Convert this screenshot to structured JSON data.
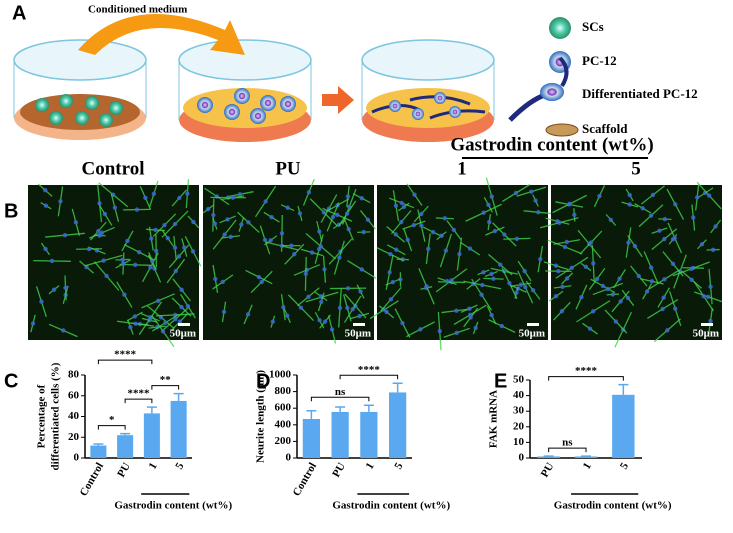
{
  "panels": {
    "a": "A",
    "b": "B",
    "c": "C",
    "d": "D",
    "e": "E"
  },
  "schematic": {
    "arrow_label": "Conditioned medium",
    "legend": [
      "SCs",
      "PC-12",
      "Differentiated PC-12",
      "Scaffold"
    ]
  },
  "micrographs": {
    "headers": [
      "Control",
      "PU",
      "1",
      "5"
    ],
    "group_label": "Gastrodin content (wt%)",
    "scale_labels": [
      "50μm",
      "50μm",
      "50μm",
      "50μm"
    ]
  },
  "chart_data": [
    {
      "type": "bar",
      "y_label": [
        "Percentage of",
        "differentiated cells (%)"
      ],
      "categories": [
        "Control",
        "PU",
        "1",
        "5"
      ],
      "values": [
        12,
        22,
        43,
        55
      ],
      "errors": [
        1.5,
        1.5,
        6,
        7
      ],
      "color": "#5aa9f0",
      "ylim": [
        0,
        80
      ],
      "yticks": [
        0,
        20,
        40,
        60,
        80
      ],
      "group_label": {
        "text": "Gastrodin content (wt%)",
        "categories": [
          "1",
          "5"
        ]
      },
      "annotations": [
        {
          "label": "*",
          "between": [
            "Control",
            "PU"
          ]
        },
        {
          "label": "**",
          "between": [
            "1",
            "5"
          ]
        },
        {
          "label": "****",
          "between": [
            "PU",
            "1"
          ]
        },
        {
          "label": "****",
          "between": [
            "Control",
            "1"
          ]
        }
      ]
    },
    {
      "type": "bar",
      "y_label": [
        "Neurite length (μm)"
      ],
      "categories": [
        "Control",
        "PU",
        "1",
        "5"
      ],
      "values": [
        470,
        555,
        555,
        790
      ],
      "errors": [
        100,
        60,
        80,
        110
      ],
      "color": "#5aa9f0",
      "ylim": [
        0,
        1000
      ],
      "yticks": [
        0,
        200,
        400,
        600,
        800,
        1000
      ],
      "group_label": {
        "text": "Gastrodin content (wt%)",
        "categories": [
          "1",
          "5"
        ]
      },
      "annotations": [
        {
          "label": "ns",
          "between": [
            "Control",
            "1"
          ]
        },
        {
          "label": "****",
          "between": [
            "PU",
            "5"
          ]
        }
      ]
    },
    {
      "type": "bar",
      "y_label": [
        "FAK mRNA"
      ],
      "categories": [
        "PU",
        "1",
        "5"
      ],
      "values": [
        1,
        1,
        40.5
      ],
      "errors": [
        0.2,
        0.2,
        6.5
      ],
      "color": "#5aa9f0",
      "ylim": [
        0,
        50
      ],
      "yticks": [
        0,
        10,
        20,
        30,
        40,
        50
      ],
      "group_label": {
        "text": "Gastrodin content (wt%)",
        "categories": [
          "1",
          "5"
        ]
      },
      "annotations": [
        {
          "label": "ns",
          "between": [
            "PU",
            "1"
          ]
        },
        {
          "label": "****",
          "between": [
            "PU",
            "5"
          ]
        }
      ]
    }
  ]
}
